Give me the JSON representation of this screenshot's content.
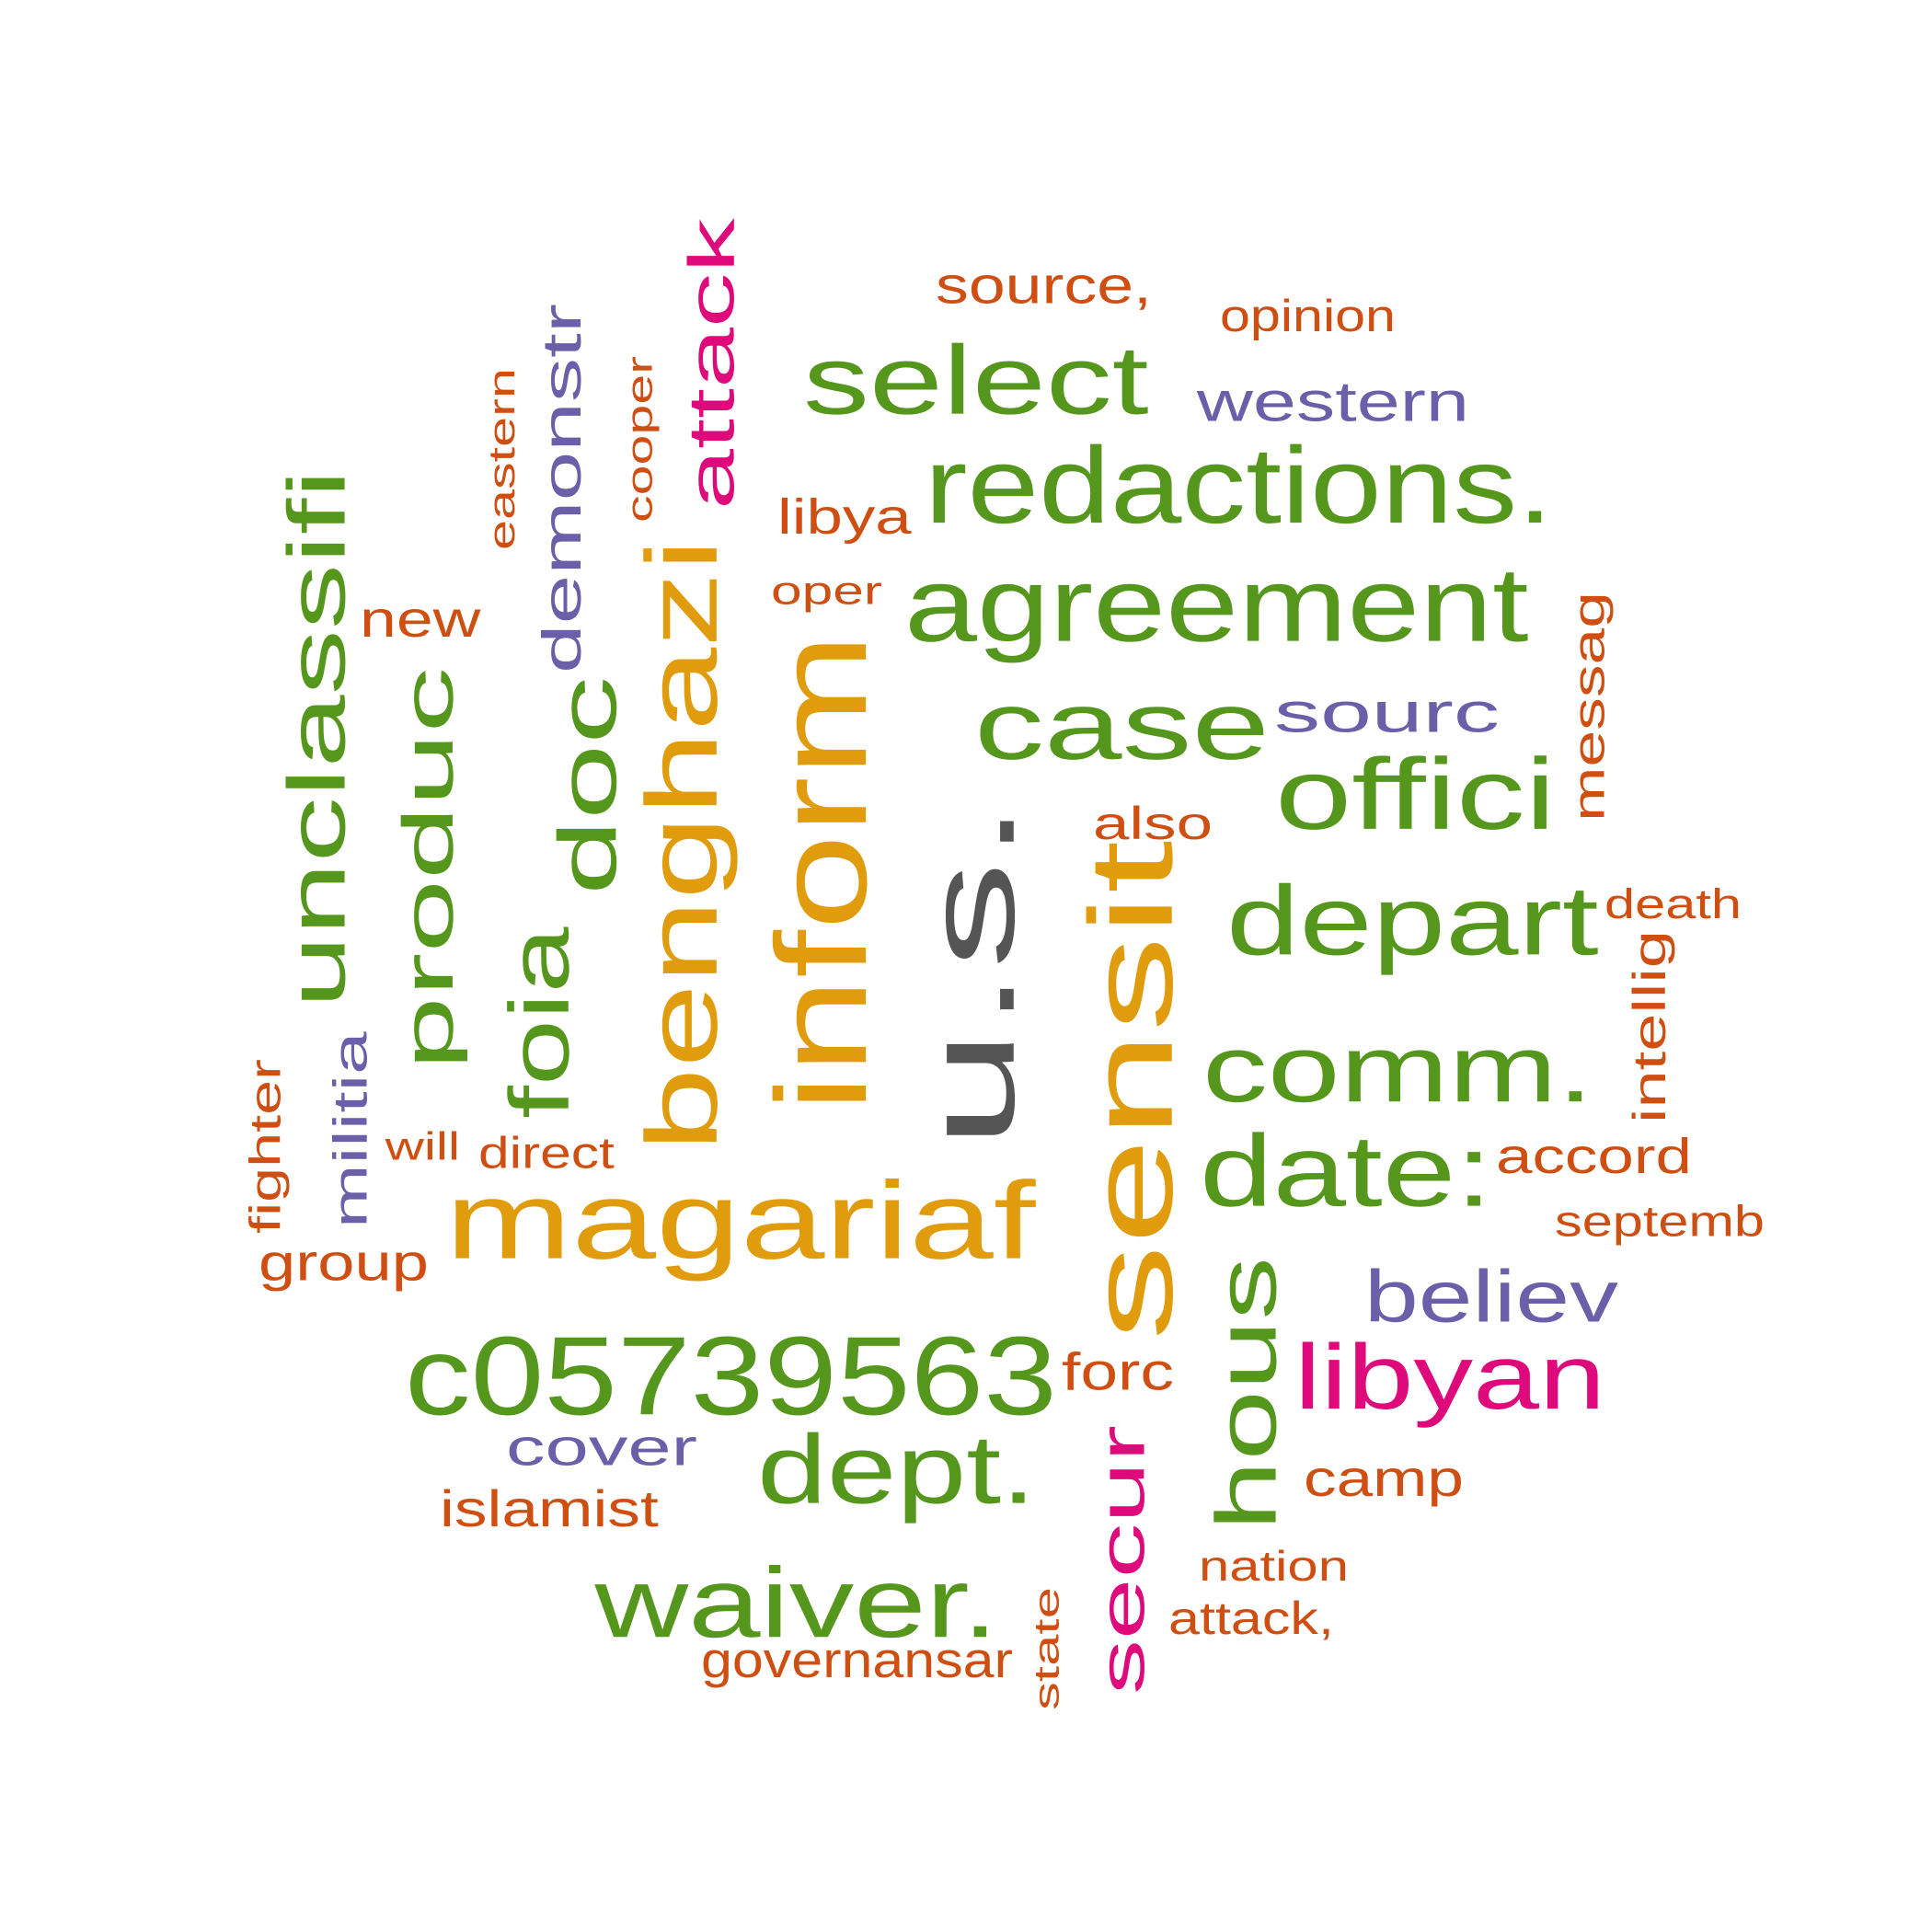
{
  "colors": {
    "gray": "#555555",
    "green": "#55961c",
    "orange": "#e19c0d",
    "magenta": "#de0a7c",
    "purple": "#6a5fa8",
    "rust": "#cf4f12"
  },
  "words": [
    {
      "text": "u.s.",
      "color": "gray",
      "rotated": true
    },
    {
      "text": "inform",
      "color": "orange",
      "rotated": true
    },
    {
      "text": "sensit",
      "color": "orange",
      "rotated": true
    },
    {
      "text": "benghazi",
      "color": "orange",
      "rotated": true
    },
    {
      "text": "magariaf",
      "color": "orange",
      "rotated": false
    },
    {
      "text": "c05739563",
      "color": "green",
      "rotated": false
    },
    {
      "text": "redactions.",
      "color": "green",
      "rotated": false
    },
    {
      "text": "agreement",
      "color": "green",
      "rotated": false
    },
    {
      "text": "select",
      "color": "green",
      "rotated": false
    },
    {
      "text": "case",
      "color": "green",
      "rotated": false
    },
    {
      "text": "offici",
      "color": "green",
      "rotated": false
    },
    {
      "text": "depart",
      "color": "green",
      "rotated": false
    },
    {
      "text": "comm.",
      "color": "green",
      "rotated": false
    },
    {
      "text": "date:",
      "color": "green",
      "rotated": false
    },
    {
      "text": "dept.",
      "color": "green",
      "rotated": false
    },
    {
      "text": "waiver.",
      "color": "green",
      "rotated": false
    },
    {
      "text": "unclassifi",
      "color": "green",
      "rotated": true
    },
    {
      "text": "produc",
      "color": "green",
      "rotated": true
    },
    {
      "text": "foia",
      "color": "green",
      "rotated": true
    },
    {
      "text": "doc",
      "color": "green",
      "rotated": true
    },
    {
      "text": "hous",
      "color": "green",
      "rotated": true
    },
    {
      "text": "attack",
      "color": "magenta",
      "rotated": true
    },
    {
      "text": "libyan",
      "color": "magenta",
      "rotated": false
    },
    {
      "text": "secur",
      "color": "magenta",
      "rotated": true
    },
    {
      "text": "demonstr",
      "color": "purple",
      "rotated": true
    },
    {
      "text": "western",
      "color": "purple",
      "rotated": false
    },
    {
      "text": "sourc",
      "color": "purple",
      "rotated": false
    },
    {
      "text": "believ",
      "color": "purple",
      "rotated": false
    },
    {
      "text": "cover",
      "color": "purple",
      "rotated": false
    },
    {
      "text": "militia",
      "color": "purple",
      "rotated": true
    },
    {
      "text": "source,",
      "color": "rust",
      "rotated": false
    },
    {
      "text": "opinion",
      "color": "rust",
      "rotated": false
    },
    {
      "text": "libya",
      "color": "rust",
      "rotated": false
    },
    {
      "text": "oper",
      "color": "rust",
      "rotated": false
    },
    {
      "text": "new",
      "color": "rust",
      "rotated": false
    },
    {
      "text": "also",
      "color": "rust",
      "rotated": false
    },
    {
      "text": "death",
      "color": "rust",
      "rotated": false
    },
    {
      "text": "accord",
      "color": "rust",
      "rotated": false
    },
    {
      "text": "septemb",
      "color": "rust",
      "rotated": false
    },
    {
      "text": "will",
      "color": "rust",
      "rotated": false
    },
    {
      "text": "direct",
      "color": "rust",
      "rotated": false
    },
    {
      "text": "group",
      "color": "rust",
      "rotated": false
    },
    {
      "text": "forc",
      "color": "rust",
      "rotated": false
    },
    {
      "text": "camp",
      "color": "rust",
      "rotated": false
    },
    {
      "text": "islamist",
      "color": "rust",
      "rotated": false
    },
    {
      "text": "nation",
      "color": "rust",
      "rotated": false
    },
    {
      "text": "attack,",
      "color": "rust",
      "rotated": false
    },
    {
      "text": "governansar",
      "color": "rust",
      "rotated": false
    },
    {
      "text": "eastern",
      "color": "rust",
      "rotated": true
    },
    {
      "text": "cooper",
      "color": "rust",
      "rotated": true
    },
    {
      "text": "messag",
      "color": "rust",
      "rotated": true
    },
    {
      "text": "intellig",
      "color": "rust",
      "rotated": true
    },
    {
      "text": "fighter",
      "color": "rust",
      "rotated": true
    },
    {
      "text": "state",
      "color": "rust",
      "rotated": true
    }
  ]
}
